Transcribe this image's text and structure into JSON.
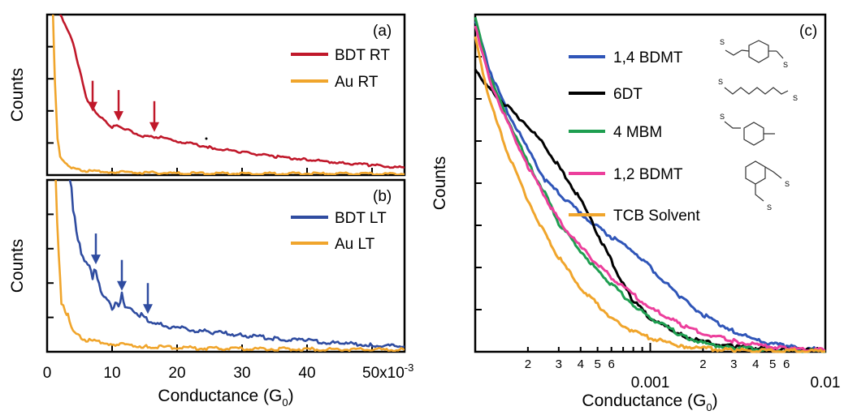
{
  "chart_data": [
    {
      "panel": "(a)",
      "type": "line",
      "ylabel": "Counts",
      "xlim": [
        0,
        55
      ],
      "ytick_count": 4,
      "series": [
        {
          "name": "BDT RT",
          "color": "#c0182a",
          "points": [
            [
              2,
              2.6
            ],
            [
              4,
              2.15
            ],
            [
              6,
              1.25
            ],
            [
              8,
              0.95
            ],
            [
              10,
              0.78
            ],
            [
              11,
              0.8
            ],
            [
              13,
              0.7
            ],
            [
              15,
              0.62
            ],
            [
              17,
              0.62
            ],
            [
              20,
              0.55
            ],
            [
              25,
              0.45
            ],
            [
              30,
              0.37
            ],
            [
              35,
              0.3
            ],
            [
              40,
              0.25
            ],
            [
              45,
              0.2
            ],
            [
              50,
              0.16
            ],
            [
              55,
              0.12
            ]
          ]
        },
        {
          "name": "Au RT",
          "color": "#f0a52c",
          "points": [
            [
              0.9,
              2.6
            ],
            [
              1.2,
              1.5
            ],
            [
              1.6,
              0.6
            ],
            [
              2,
              0.3
            ],
            [
              3,
              0.17
            ],
            [
              4,
              0.11
            ],
            [
              6,
              0.07
            ],
            [
              10,
              0.05
            ],
            [
              20,
              0.03
            ],
            [
              55,
              0.02
            ]
          ]
        }
      ],
      "arrows": [
        {
          "x": 7,
          "y": 0.95
        },
        {
          "x": 11,
          "y": 0.8
        },
        {
          "x": 16.5,
          "y": 0.62
        }
      ]
    },
    {
      "panel": "(b)",
      "type": "line",
      "ylabel": "Counts",
      "xlabel": "Conductance (G0)",
      "xlim": [
        0,
        55
      ],
      "x_ticks": [
        "0",
        "10",
        "20",
        "30",
        "40",
        "50x10-3"
      ],
      "ytick_count": 4,
      "series": [
        {
          "name": "BDT LT",
          "color": "#2f4ca0",
          "points": [
            [
              3.5,
              2.6
            ],
            [
              4,
              2.2
            ],
            [
              5,
              1.6
            ],
            [
              6,
              1.35
            ],
            [
              7,
              1.15
            ],
            [
              7.5,
              1.25
            ],
            [
              8,
              1.0
            ],
            [
              9,
              0.78
            ],
            [
              10,
              0.68
            ],
            [
              11,
              0.72
            ],
            [
              11.5,
              0.85
            ],
            [
              12,
              0.65
            ],
            [
              14,
              0.58
            ],
            [
              15.5,
              0.48
            ],
            [
              17,
              0.42
            ],
            [
              20,
              0.36
            ],
            [
              25,
              0.3
            ],
            [
              30,
              0.25
            ],
            [
              35,
              0.2
            ],
            [
              40,
              0.17
            ],
            [
              45,
              0.13
            ],
            [
              50,
              0.1
            ],
            [
              55,
              0.08
            ]
          ]
        },
        {
          "name": "Au LT",
          "color": "#f0a52c",
          "points": [
            [
              1.3,
              2.6
            ],
            [
              1.8,
              1.4
            ],
            [
              2.2,
              0.75
            ],
            [
              2.8,
              0.6
            ],
            [
              3.2,
              0.55
            ],
            [
              4,
              0.3
            ],
            [
              6,
              0.18
            ],
            [
              10,
              0.12
            ],
            [
              15,
              0.08
            ],
            [
              25,
              0.05
            ],
            [
              55,
              0.03
            ]
          ]
        }
      ],
      "arrows": [
        {
          "x": 7.5,
          "y": 1.25
        },
        {
          "x": 11.5,
          "y": 0.85
        },
        {
          "x": 15.5,
          "y": 0.5
        }
      ]
    },
    {
      "panel": "(c)",
      "type": "line",
      "xscale": "log",
      "xlabel": "Conductance (G0)",
      "ylabel": "Counts",
      "xlim": [
        0.0001,
        0.01
      ],
      "ylim": [
        0,
        1
      ],
      "x_major_ticks": [
        {
          "value": 0.001,
          "label": "0.001"
        },
        {
          "value": 0.01,
          "label": "0.01"
        }
      ],
      "x_minor_labels": [
        "2",
        "3",
        "4",
        "5",
        "6",
        "2",
        "3",
        "4",
        "5",
        "6"
      ],
      "ytick_count": 7,
      "series": [
        {
          "name": "1,4 BDMT",
          "color": "#2f55b8",
          "points": [
            [
              0.0001,
              0.98
            ],
            [
              0.00012,
              0.84
            ],
            [
              0.00015,
              0.72
            ],
            [
              0.0002,
              0.6
            ],
            [
              0.00025,
              0.51
            ],
            [
              0.0003,
              0.47
            ],
            [
              0.0004,
              0.41
            ],
            [
              0.0005,
              0.37
            ],
            [
              0.0006,
              0.34
            ],
            [
              0.0008,
              0.3
            ],
            [
              0.001,
              0.25
            ],
            [
              0.0015,
              0.16
            ],
            [
              0.002,
              0.11
            ],
            [
              0.003,
              0.06
            ],
            [
              0.004,
              0.035
            ],
            [
              0.006,
              0.015
            ],
            [
              0.01,
              0.005
            ]
          ]
        },
        {
          "name": "6DT",
          "color": "#000000",
          "points": [
            [
              0.0001,
              0.84
            ],
            [
              0.00012,
              0.78
            ],
            [
              0.00015,
              0.73
            ],
            [
              0.0002,
              0.67
            ],
            [
              0.00025,
              0.61
            ],
            [
              0.0003,
              0.55
            ],
            [
              0.0004,
              0.45
            ],
            [
              0.0005,
              0.35
            ],
            [
              0.0006,
              0.27
            ],
            [
              0.0007,
              0.2
            ],
            [
              0.0008,
              0.15
            ],
            [
              0.001,
              0.1
            ],
            [
              0.0015,
              0.05
            ],
            [
              0.002,
              0.03
            ],
            [
              0.003,
              0.015
            ],
            [
              0.005,
              0.007
            ],
            [
              0.01,
              0.003
            ]
          ]
        },
        {
          "name": "4 MBM",
          "color": "#1e9e50",
          "points": [
            [
              0.0001,
              0.99
            ],
            [
              0.00012,
              0.82
            ],
            [
              0.00015,
              0.7
            ],
            [
              0.0002,
              0.56
            ],
            [
              0.00025,
              0.47
            ],
            [
              0.0003,
              0.38
            ],
            [
              0.0004,
              0.3
            ],
            [
              0.0005,
              0.24
            ],
            [
              0.0006,
              0.2
            ],
            [
              0.0008,
              0.14
            ],
            [
              0.001,
              0.1
            ],
            [
              0.0015,
              0.05
            ],
            [
              0.002,
              0.025
            ],
            [
              0.003,
              0.012
            ],
            [
              0.005,
              0.005
            ],
            [
              0.01,
              0.002
            ]
          ]
        },
        {
          "name": "1,2 BDMT",
          "color": "#ec3f9c",
          "points": [
            [
              0.0001,
              0.97
            ],
            [
              0.00012,
              0.81
            ],
            [
              0.00015,
              0.69
            ],
            [
              0.0002,
              0.55
            ],
            [
              0.00025,
              0.46
            ],
            [
              0.0003,
              0.39
            ],
            [
              0.0004,
              0.31
            ],
            [
              0.0005,
              0.26
            ],
            [
              0.0006,
              0.22
            ],
            [
              0.0008,
              0.17
            ],
            [
              0.001,
              0.13
            ],
            [
              0.0015,
              0.08
            ],
            [
              0.002,
              0.055
            ],
            [
              0.003,
              0.032
            ],
            [
              0.004,
              0.02
            ],
            [
              0.006,
              0.01
            ],
            [
              0.01,
              0.004
            ]
          ]
        },
        {
          "name": "TCB Solvent",
          "color": "#f0a52c",
          "points": [
            [
              0.0001,
              0.93
            ],
            [
              0.00012,
              0.75
            ],
            [
              0.00015,
              0.6
            ],
            [
              0.0002,
              0.45
            ],
            [
              0.00025,
              0.35
            ],
            [
              0.0003,
              0.28
            ],
            [
              0.0004,
              0.19
            ],
            [
              0.0005,
              0.14
            ],
            [
              0.0006,
              0.1
            ],
            [
              0.0008,
              0.06
            ],
            [
              0.001,
              0.04
            ],
            [
              0.0015,
              0.018
            ],
            [
              0.002,
              0.01
            ],
            [
              0.003,
              0.005
            ],
            [
              0.01,
              0.001
            ]
          ]
        }
      ]
    }
  ]
}
